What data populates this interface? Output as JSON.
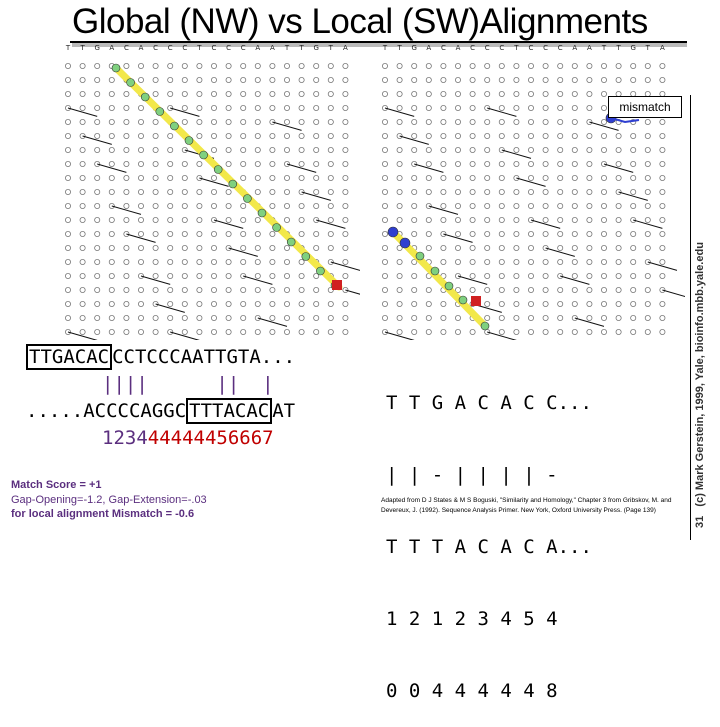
{
  "title": "Global (NW) vs Local (SW)Alignments",
  "mismatch_label": "mismatch",
  "side_credit": "(c) Mark Gerstein, 1999, Yale, bioinfo.mbb.yale.edu",
  "page_number": "31",
  "left_panel": {
    "top_seq_boxed": "TTGACAC",
    "top_seq_rest": "CCTCCCAATTGTA...",
    "bars": "||||      ||  |",
    "bottom_seq_plain": ".....ACCCCAGGC",
    "bottom_seq_boxed": "TTTACAC",
    "bottom_seq_rest": "AT",
    "scores_purple": "1234",
    "scores_red": "44444456667"
  },
  "right_panel_rows": [
    "T T G A C A C C...",
    "| | - | | | | -",
    "T T T A C A C A...",
    "1 2 1 2 3 4 5 4",
    "0 0 4 4 4 4 4 8"
  ],
  "scoring": {
    "match": "Match Score = +1",
    "gaps": "Gap-Opening=-1.2, Gap-Extension=-.03",
    "local": "for local alignment Mismatch = -0.6"
  },
  "citation": "Adapted from D J States & M S Boguski, \"Similarity and Homology,\" Chapter 3 from Gribskov, M. and Devereux, J. (1992). Sequence Analysis Primer. New York, Oxford University Press. (Page 139)",
  "colors": {
    "path_highlight": "#f2e84a",
    "path_node": "#7fd07f",
    "local_node": "#2f3fd0",
    "mismatch_node": "#d02020",
    "purple_text": "#5b2f7f",
    "red_text": "#c00000"
  }
}
